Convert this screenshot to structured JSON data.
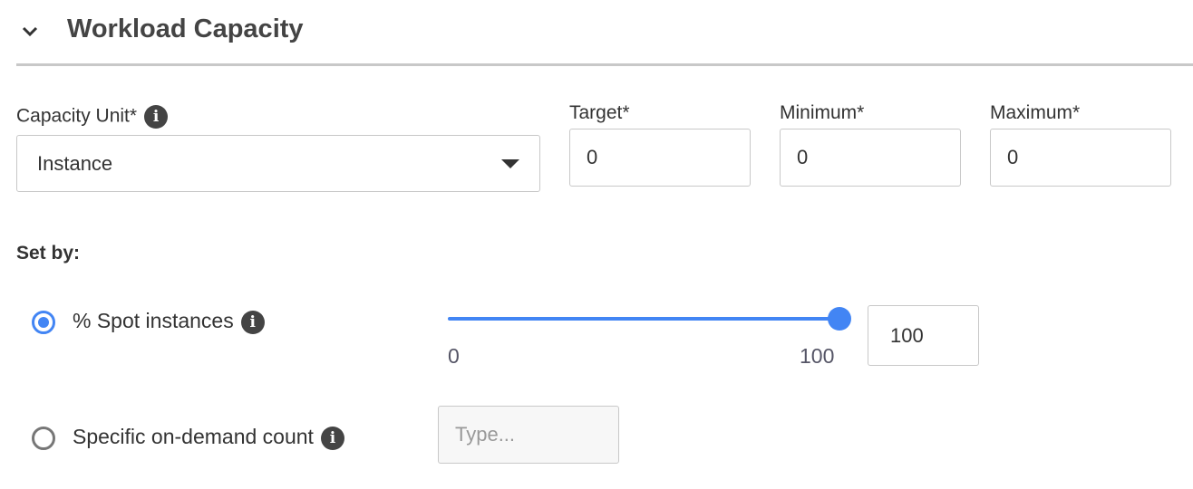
{
  "section": {
    "title": "Workload Capacity",
    "icon": "chevron-down-icon"
  },
  "capacity_unit": {
    "label": "Capacity Unit*",
    "value": "Instance"
  },
  "target": {
    "label": "Target*",
    "value": "0"
  },
  "minimum": {
    "label": "Minimum*",
    "value": "0"
  },
  "maximum": {
    "label": "Maximum*",
    "value": "0"
  },
  "set_by": {
    "label": "Set by:"
  },
  "spot": {
    "label": "% Spot instances",
    "selected": true,
    "slider_min": "0",
    "slider_max": "100",
    "slider_value": 100,
    "value": "100"
  },
  "on_demand": {
    "label": "Specific on-demand count",
    "selected": false,
    "placeholder": "Type..."
  },
  "colors": {
    "accent": "#4285f4"
  }
}
